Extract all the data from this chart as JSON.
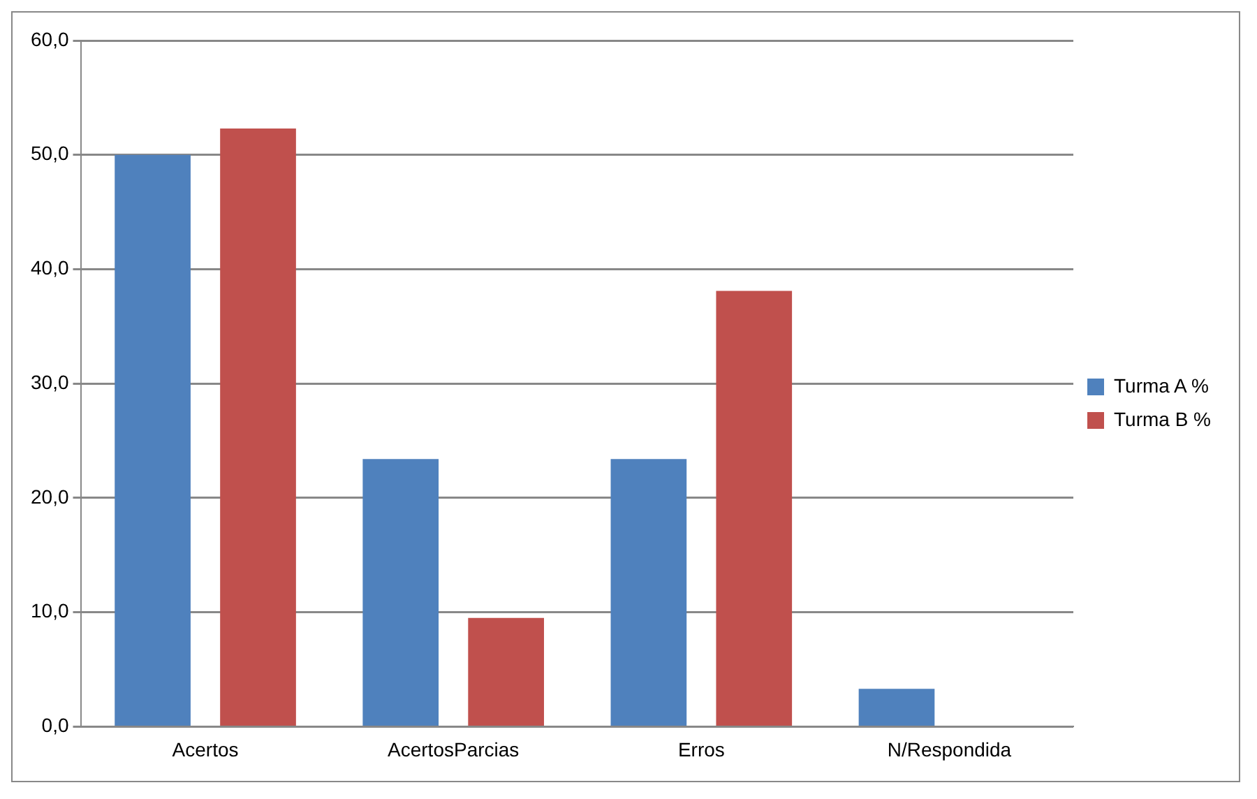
{
  "chart_data": {
    "type": "bar",
    "categories": [
      "Acertos",
      "AcertosParcias",
      "Erros",
      "N/Respondida"
    ],
    "series": [
      {
        "name": "Turma A %",
        "color": "#4f81bd",
        "values": [
          50.0,
          23.4,
          23.4,
          3.3
        ]
      },
      {
        "name": "Turma B %",
        "color": "#c0504d",
        "values": [
          52.3,
          9.5,
          38.1,
          0
        ]
      }
    ],
    "ylim": [
      0,
      60
    ],
    "yticks": [
      {
        "value": 0,
        "label": "0,0"
      },
      {
        "value": 10,
        "label": "10,0"
      },
      {
        "value": 20,
        "label": "20,0"
      },
      {
        "value": 30,
        "label": "30,0"
      },
      {
        "value": 40,
        "label": "40,0"
      },
      {
        "value": 50,
        "label": "50,0"
      },
      {
        "value": 60,
        "label": "60,0"
      }
    ],
    "grid": "y",
    "legend": "right"
  }
}
